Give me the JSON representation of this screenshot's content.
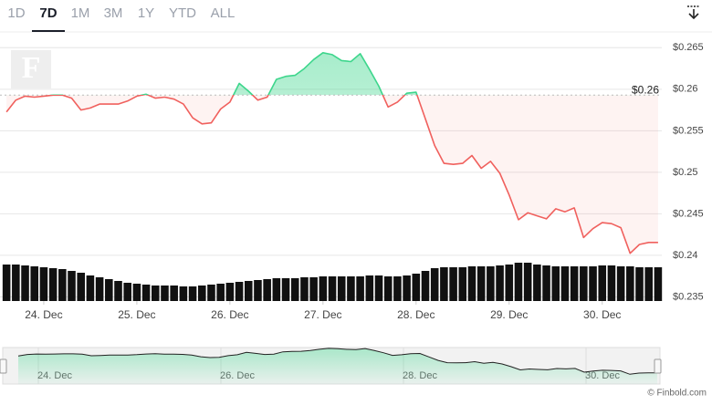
{
  "tabs": [
    "1D",
    "7D",
    "1M",
    "3M",
    "1Y",
    "YTD",
    "ALL"
  ],
  "selected_tab": 1,
  "logo": "F",
  "chart_data": {
    "type": "line",
    "x": [
      23.6,
      23.7,
      23.8,
      23.9,
      24.0,
      24.1,
      24.2,
      24.3,
      24.4,
      24.5,
      24.6,
      24.7,
      24.8,
      24.9,
      25.0,
      25.1,
      25.2,
      25.3,
      25.4,
      25.5,
      25.6,
      25.7,
      25.8,
      25.9,
      26.0,
      26.1,
      26.2,
      26.3,
      26.4,
      26.5,
      26.6,
      26.7,
      26.8,
      26.9,
      27.0,
      27.1,
      27.2,
      27.3,
      27.4,
      27.5,
      27.6,
      27.7,
      27.8,
      27.9,
      28.0,
      28.1,
      28.2,
      28.3,
      28.4,
      28.5,
      28.6,
      28.7,
      28.8,
      28.9,
      29.0,
      29.1,
      29.2,
      29.3,
      29.4,
      29.5,
      29.6,
      29.7,
      29.8,
      29.9,
      30.0,
      30.1,
      30.2,
      30.3,
      30.4,
      30.5,
      30.6
    ],
    "values": [
      0.25726,
      0.25869,
      0.25917,
      0.25905,
      0.25917,
      0.25929,
      0.25929,
      0.25893,
      0.2575,
      0.25774,
      0.25821,
      0.25821,
      0.25821,
      0.25857,
      0.25917,
      0.2594,
      0.25893,
      0.25905,
      0.25881,
      0.25821,
      0.25655,
      0.25583,
      0.25595,
      0.25762,
      0.25845,
      0.26071,
      0.25976,
      0.25869,
      0.25905,
      0.26119,
      0.26155,
      0.26167,
      0.2625,
      0.26357,
      0.2644,
      0.26417,
      0.26345,
      0.26333,
      0.26429,
      0.26238,
      0.26036,
      0.25786,
      0.25845,
      0.25952,
      0.25964,
      0.25643,
      0.25321,
      0.25107,
      0.25095,
      0.25107,
      0.25202,
      0.25048,
      0.25131,
      0.24988,
      0.24726,
      0.24429,
      0.24512,
      0.24476,
      0.2444,
      0.2456,
      0.24524,
      0.24571,
      0.24214,
      0.24321,
      0.24393,
      0.24381,
      0.24333,
      0.24024,
      0.24131,
      0.24155,
      0.24155
    ],
    "volume": [
      40,
      40,
      39,
      38,
      37,
      36,
      35,
      33,
      31,
      28,
      26,
      24,
      22,
      20,
      19,
      18,
      17,
      17,
      17,
      16,
      16,
      17,
      18,
      19,
      20,
      21,
      22,
      23,
      24,
      25,
      25,
      25,
      26,
      26,
      27,
      27,
      27,
      27,
      27,
      28,
      28,
      27,
      27,
      28,
      30,
      33,
      36,
      37,
      37,
      37,
      38,
      38,
      38,
      39,
      40,
      42,
      42,
      40,
      39,
      38,
      38,
      38,
      38,
      38,
      39,
      39,
      38,
      38,
      37,
      37,
      37
    ],
    "volume_lim": [
      0,
      100
    ],
    "up_color": "#3dd68c",
    "down_color": "#f0605d",
    "volume_color": "#111111",
    "baseline": {
      "value": 0.2593,
      "label": "$0.26"
    },
    "xlim": [
      23.53,
      30.64
    ],
    "xticks": [
      {
        "value": 24,
        "label": "24. Dec"
      },
      {
        "value": 25,
        "label": "25. Dec"
      },
      {
        "value": 26,
        "label": "26. Dec"
      },
      {
        "value": 27,
        "label": "27. Dec"
      },
      {
        "value": 28,
        "label": "28. Dec"
      },
      {
        "value": 29,
        "label": "29. Dec"
      },
      {
        "value": 30,
        "label": "30. Dec"
      }
    ],
    "ylim": [
      0.2345,
      0.2669
    ],
    "yticks": [
      {
        "value": 0.235,
        "label": "$0.235"
      },
      {
        "value": 0.24,
        "label": "$0.24"
      },
      {
        "value": 0.245,
        "label": "$0.245"
      },
      {
        "value": 0.25,
        "label": "$0.25"
      },
      {
        "value": 0.255,
        "label": "$0.255"
      },
      {
        "value": 0.26,
        "label": "$0.26"
      },
      {
        "value": 0.265,
        "label": "$0.265"
      }
    ],
    "grid": true
  },
  "navigator": {
    "xlim": [
      23.45,
      30.6
    ],
    "xticks": [
      {
        "value": 24,
        "label": "24. Dec"
      },
      {
        "value": 26,
        "label": "26. Dec"
      },
      {
        "value": 28,
        "label": "28. Dec"
      },
      {
        "value": 30,
        "label": "30. Dec"
      }
    ]
  },
  "credit": "© Finbold.com"
}
